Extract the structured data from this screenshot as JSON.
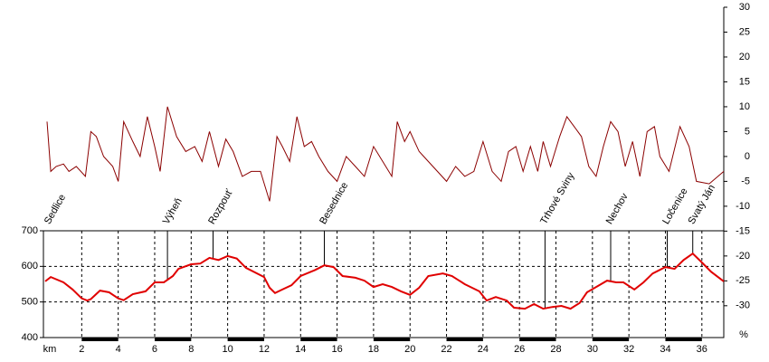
{
  "chart_data": {
    "type": "line",
    "xlabel": "km",
    "y2label": "%",
    "xlim": [
      -0.1,
      37.2
    ],
    "xticks": [
      2,
      4,
      6,
      8,
      10,
      12,
      14,
      16,
      18,
      20,
      22,
      24,
      26,
      28,
      30,
      32,
      34,
      36
    ],
    "ylim": [
      400,
      700
    ],
    "yticks": [
      400,
      500,
      600,
      700
    ],
    "y2lim": [
      -36.4,
      30
    ],
    "y2ticks": [
      30,
      25,
      20,
      15,
      10,
      5,
      0,
      -5,
      -10,
      -15,
      -20,
      -25,
      -30
    ],
    "grid": true,
    "series": [
      {
        "color": "#8b0000",
        "axis": "y2",
        "x": [
          0.1,
          0.3,
          0.6,
          1,
          1.3,
          1.7,
          2.2,
          2.5,
          2.8,
          3.2,
          3.7,
          4,
          4.3,
          4.8,
          5.2,
          5.6,
          6,
          6.3,
          6.7,
          7.2,
          7.7,
          8.2,
          8.6,
          9,
          9.5,
          9.9,
          10.3,
          10.8,
          11.3,
          11.8,
          12.3,
          12.7,
          13,
          13.4,
          13.8,
          14.2,
          14.6,
          15,
          15.5,
          16,
          16.5,
          17,
          17.5,
          18,
          18.5,
          19,
          19.3,
          19.7,
          20,
          20.5,
          21,
          21.5,
          22,
          22.5,
          23,
          23.5,
          24,
          24.5,
          25,
          25.4,
          25.8,
          26.2,
          26.6,
          27,
          27.3,
          27.7,
          28.2,
          28.6,
          29,
          29.4,
          29.8,
          30.2,
          30.6,
          31,
          31.4,
          31.8,
          32.2,
          32.6,
          33,
          33.4,
          33.7,
          34.2,
          34.8,
          35.3,
          35.7,
          36.4,
          37.2
        ],
        "values": [
          7,
          -3,
          -2,
          -1.5,
          -3,
          -2,
          -4,
          5,
          4,
          0,
          -2,
          -5,
          7,
          3,
          0,
          8,
          2,
          -3,
          10,
          4,
          1,
          2,
          -1,
          5,
          -2,
          3.5,
          1,
          -4,
          -3,
          -3,
          -9,
          4,
          2,
          -1,
          8,
          2,
          3,
          0,
          -3,
          -5,
          0,
          -2,
          -4,
          2,
          -1,
          -4,
          7,
          3,
          5,
          1,
          -1,
          -3,
          -5,
          -2,
          -4,
          -3,
          3,
          -3,
          -5,
          1,
          2,
          -3,
          2,
          -3,
          3,
          -2,
          4,
          8,
          6,
          4,
          -2,
          -4,
          2,
          7,
          5,
          -2,
          3,
          -4,
          5,
          6,
          0,
          -3,
          6,
          2,
          -5,
          -5.5,
          -3
        ]
      },
      {
        "color": "#e00000",
        "axis": "y",
        "x": [
          0,
          0.3,
          1,
          1.5,
          2,
          2.3,
          2.5,
          3,
          3.5,
          4,
          4.3,
          4.8,
          5.5,
          6,
          6.5,
          7,
          7.3,
          8,
          8.5,
          9,
          9.5,
          10,
          10.5,
          11,
          12,
          12.3,
          12.6,
          13,
          13.5,
          14,
          14.8,
          15.3,
          15.8,
          16.3,
          17,
          17.5,
          18,
          18.5,
          19,
          19.5,
          20,
          20.5,
          21,
          21.8,
          22.3,
          23,
          23.8,
          24.2,
          24.7,
          25.3,
          25.7,
          26.3,
          26.8,
          27.3,
          27.8,
          28.3,
          28.8,
          29.3,
          29.7,
          30.3,
          30.8,
          31.3,
          31.7,
          32.3,
          32.8,
          33.3,
          34,
          34.5,
          35,
          35.5,
          36,
          36.5,
          37.2
        ],
        "values": [
          558,
          570,
          555,
          535,
          510,
          504,
          508,
          532,
          527,
          510,
          505,
          522,
          530,
          555,
          555,
          573,
          593,
          606,
          608,
          624,
          618,
          629,
          622,
          596,
          570,
          540,
          525,
          535,
          547,
          573,
          590,
          603,
          598,
          573,
          568,
          560,
          542,
          550,
          542,
          530,
          520,
          540,
          573,
          580,
          573,
          550,
          530,
          504,
          514,
          504,
          484,
          481,
          494,
          481,
          486,
          489,
          481,
          497,
          527,
          545,
          560,
          555,
          555,
          535,
          555,
          580,
          598,
          593,
          618,
          636,
          611,
          585,
          558
        ]
      }
    ],
    "annotations": [
      {
        "label": "Sedlice",
        "x": 0.2
      },
      {
        "label": "Výheň",
        "x": 6.7
      },
      {
        "label": "Rozpouť",
        "x": 9.2
      },
      {
        "label": "Besednice",
        "x": 15.3
      },
      {
        "label": "Trhové Sviny",
        "x": 27.4
      },
      {
        "label": "Nechov",
        "x": 31
      },
      {
        "label": "Ločenice",
        "x": 34.1
      },
      {
        "label": "Svatý Ján",
        "x": 35.5
      }
    ]
  }
}
